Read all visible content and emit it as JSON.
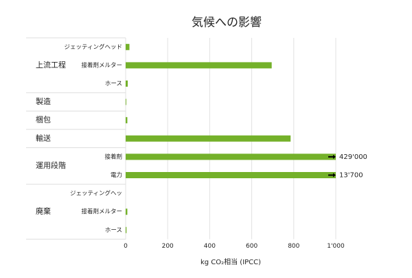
{
  "chart_data": {
    "type": "grouped-hbar",
    "title": "気候への影響",
    "x_label": "kg CO₂相当 (IPCC)",
    "color": "#74b12a",
    "xlim": [
      0,
      1000
    ],
    "xticks": [
      0,
      200,
      400,
      600,
      800,
      {
        "value": 1000,
        "label": "1'000"
      }
    ],
    "grid": true,
    "groups": [
      {
        "name": "上流工程",
        "categories": [
          "ジェッティングヘッド",
          "接着剤メルター",
          "ホース"
        ],
        "values": [
          18,
          695,
          10
        ],
        "value_labels": [
          null,
          null,
          null
        ]
      },
      {
        "name": "製造",
        "categories": [
          null
        ],
        "values": [
          3
        ],
        "value_labels": [
          null
        ]
      },
      {
        "name": "梱包",
        "categories": [
          null
        ],
        "values": [
          8
        ],
        "value_labels": [
          null
        ]
      },
      {
        "name": "輸送",
        "categories": [
          null
        ],
        "values": [
          785
        ],
        "value_labels": [
          null
        ]
      },
      {
        "name": "運用段階",
        "categories": [
          "接着剤",
          "電力"
        ],
        "values": [
          429000,
          13700
        ],
        "value_labels": [
          "429'000",
          "13'700"
        ]
      },
      {
        "name": "廃棄",
        "categories": [
          "ジェッティングヘッ",
          "接着剤メルター",
          "ホース"
        ],
        "values": [
          0,
          8,
          4
        ],
        "value_labels": [
          null,
          null,
          null
        ]
      }
    ]
  }
}
